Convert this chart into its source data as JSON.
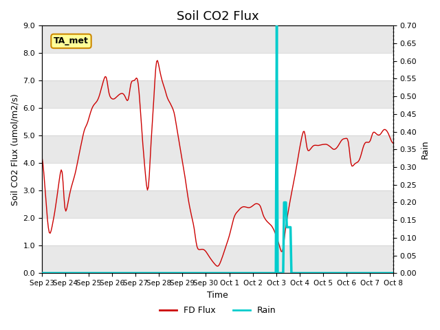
{
  "title": "Soil CO2 Flux",
  "ylabel_left": "Soil CO2 Flux (umol/m2/s)",
  "ylabel_right": "Rain",
  "xlabel": "Time",
  "ylim_left": [
    0,
    9.0
  ],
  "ylim_right": [
    0.0,
    0.7
  ],
  "yticks_left": [
    0.0,
    1.0,
    2.0,
    3.0,
    4.0,
    5.0,
    6.0,
    7.0,
    8.0,
    9.0
  ],
  "yticks_right": [
    0.0,
    0.05,
    0.1,
    0.15,
    0.2,
    0.25,
    0.3,
    0.35,
    0.4,
    0.45,
    0.5,
    0.55,
    0.6,
    0.65,
    0.7
  ],
  "flux_color": "#CC0000",
  "rain_color": "#00CCCC",
  "background_color": "#ffffff",
  "band_color": "#e8e8e8",
  "legend_flux": "FD Flux",
  "legend_rain": "Rain",
  "annotation_text": "TA_met",
  "annotation_bg": "#FFFF99",
  "annotation_border": "#CC8800",
  "xticklabels": [
    "Sep 23",
    "Sep 24",
    "Sep 25",
    "Sep 26",
    "Sep 27",
    "Sep 28",
    "Sep 29",
    "Sep 30",
    "Oct 1",
    "Oct 2",
    "Oct 3",
    "Oct 4",
    "Oct 5",
    "Oct 6",
    "Oct 7",
    "Oct 8"
  ],
  "grid_color": "#cccccc"
}
